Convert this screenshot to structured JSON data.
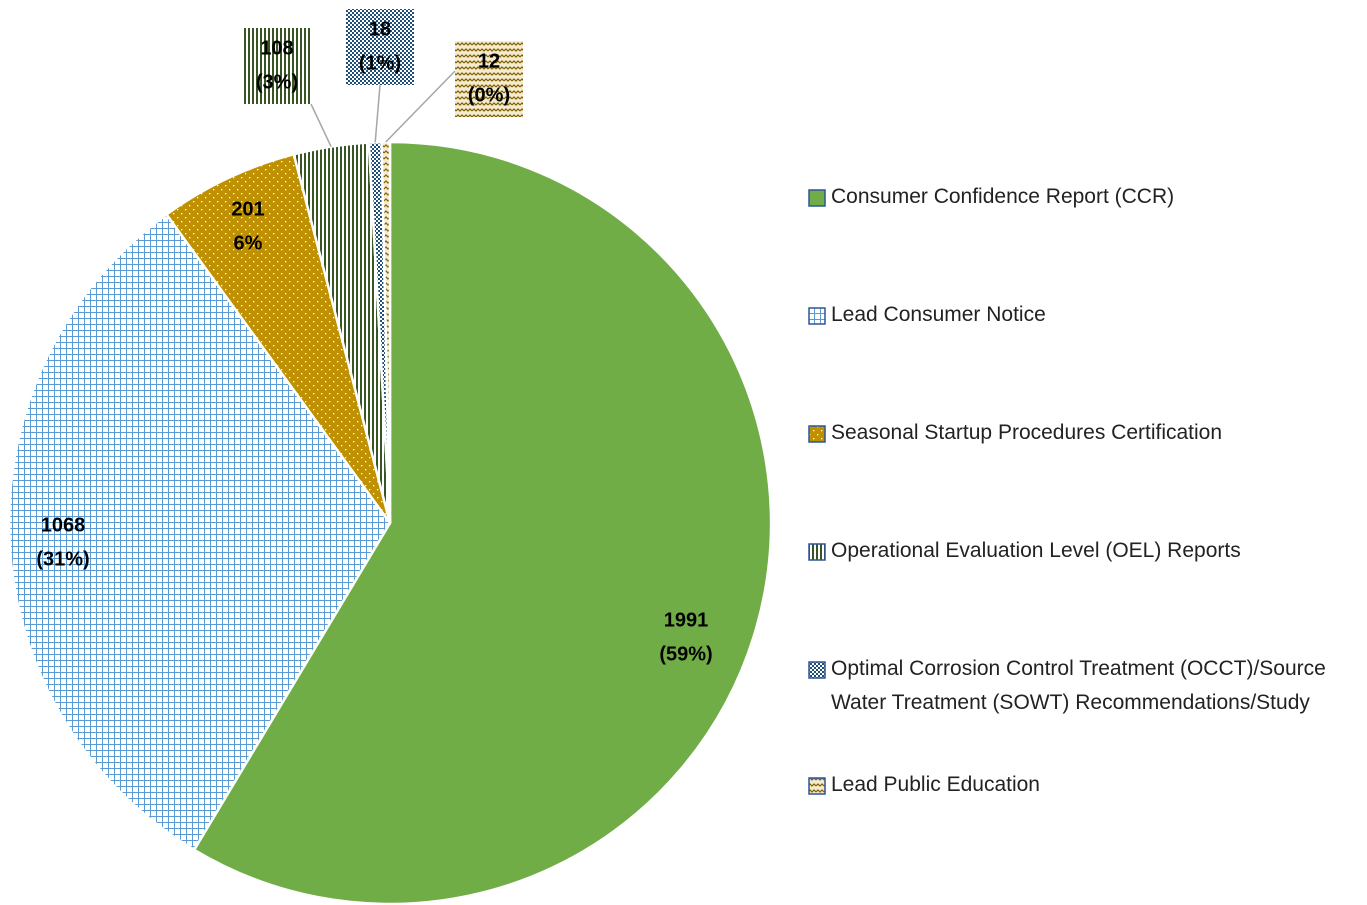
{
  "chart_data": {
    "type": "pie",
    "categories": [
      "Consumer Confidence Report (CCR)",
      "Lead Consumer Notice",
      "Seasonal Startup Procedures Certification",
      "Operational Evaluation Level (OEL) Reports",
      "Optimal Corrosion Control Treatment (OCCT)/Source Water Treatment (SOWT) Recommendations/Study",
      "Lead Public Education"
    ],
    "values": [
      1991,
      1068,
      201,
      108,
      18,
      12
    ],
    "percent_labels": [
      "(59%)",
      "(31%)",
      "6%",
      "(3%)",
      "(1%)",
      "(0%)"
    ],
    "colors": [
      "#70ad47",
      "#5b9bd5",
      "#bf9000",
      "#375623",
      "#1f4e79",
      "#7f6000"
    ],
    "patterns": [
      "solid",
      "grid",
      "dots",
      "vertical",
      "checker",
      "wave"
    ],
    "legend": "right"
  }
}
